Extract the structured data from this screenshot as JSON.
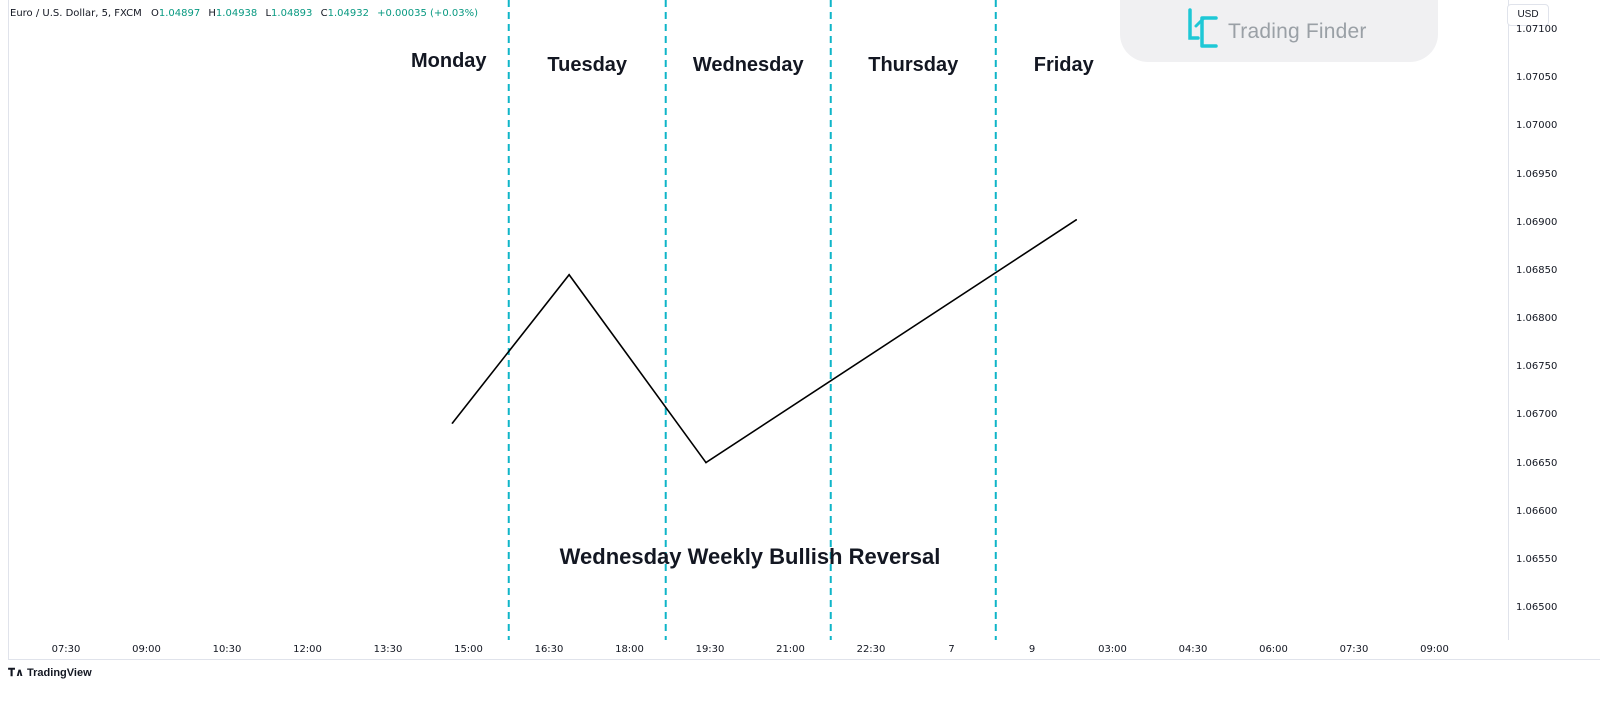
{
  "legend": {
    "symbol": "Euro / U.S. Dollar, 5, FXCM",
    "open_label": "O",
    "open": "1.04897",
    "high_label": "H",
    "high": "1.04938",
    "low_label": "L",
    "low": "1.04893",
    "close_label": "C",
    "close": "1.04932",
    "change": "+0.00035 (+0.03%)"
  },
  "currency": "USD",
  "watermark": {
    "text": "Trading Finder"
  },
  "footer": {
    "brand": "TradingView"
  },
  "chart_data": {
    "type": "line",
    "caption": "Wednesday Weekly Bullish Reversal",
    "day_labels": [
      "Monday",
      "Tuesday",
      "Wednesday",
      "Thursday",
      "Friday"
    ],
    "x_ticks": [
      "07:30",
      "09:00",
      "10:30",
      "12:00",
      "13:30",
      "15:00",
      "16:30",
      "18:00",
      "19:30",
      "21:00",
      "22:30",
      "7",
      "9",
      "03:00",
      "04:30",
      "06:00",
      "07:30",
      "09:00"
    ],
    "y_ticks": [
      "1.07100",
      "1.07050",
      "1.07000",
      "1.06950",
      "1.06900",
      "1.06850",
      "1.06800",
      "1.06750",
      "1.06700",
      "1.06650",
      "1.06600",
      "1.06550",
      "1.06500"
    ],
    "ylim": [
      1.0648,
      1.0712
    ],
    "day_separators_after_tick": [
      5.5,
      7.45,
      9.5,
      11.55
    ],
    "series": [
      {
        "x": [
          4.8,
          6.25,
          7.95,
          12.55
        ],
        "y": [
          1.06693,
          1.06847,
          1.06652,
          1.06904
        ]
      }
    ],
    "colors": {
      "line": "#000000",
      "separator": "#0fb5c8"
    },
    "grid": false
  }
}
